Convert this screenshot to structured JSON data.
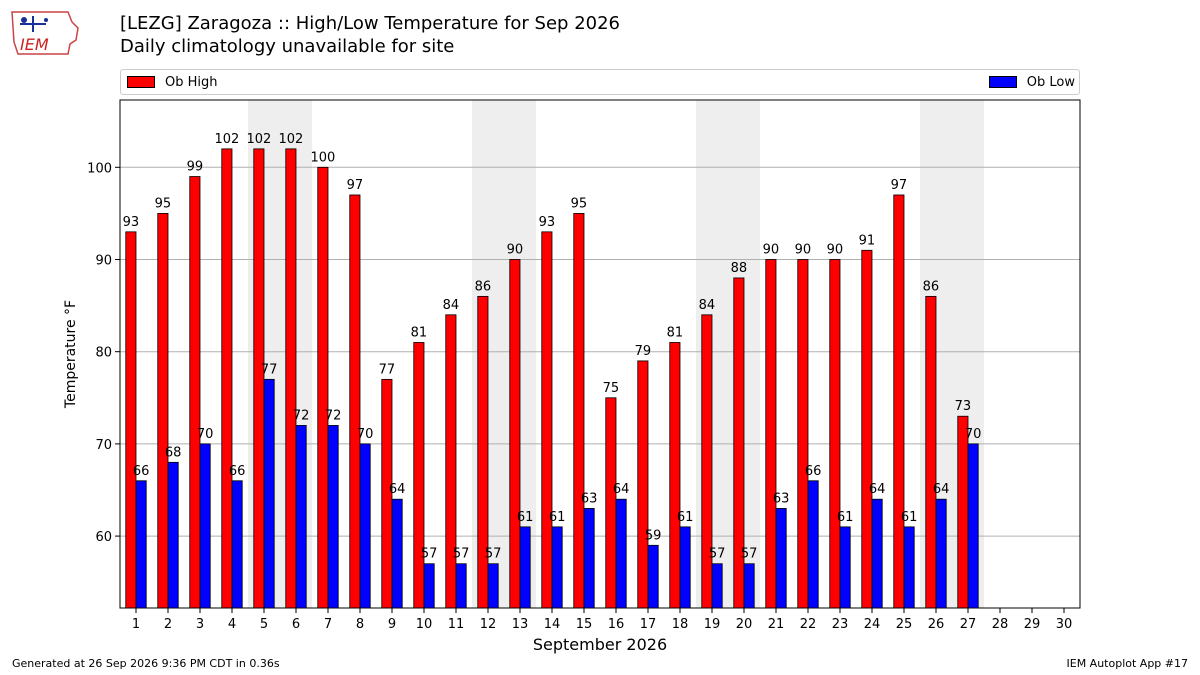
{
  "header": {
    "title": "[LEZG] Zaragoza :: High/Low Temperature for Sep 2026",
    "subtitle": "Daily climatology unavailable for site",
    "logo_text": "IEM"
  },
  "legend": {
    "high_label": "Ob High",
    "low_label": "Ob Low"
  },
  "footer": {
    "generated": "Generated at 26 Sep 2026 9:36 PM CDT in 0.36s",
    "app": "IEM Autoplot App #17"
  },
  "colors": {
    "high": "#ff0000",
    "low": "#0000ff",
    "weekend_band": "#eeeeee",
    "grid": "#b0b0b0"
  },
  "chart_data": {
    "type": "bar",
    "title": "[LEZG] Zaragoza :: High/Low Temperature for Sep 2026",
    "subtitle": "Daily climatology unavailable for site",
    "xlabel": "September 2026",
    "ylabel": "Temperature °F",
    "categories": [
      "1",
      "2",
      "3",
      "4",
      "5",
      "6",
      "7",
      "8",
      "9",
      "10",
      "11",
      "12",
      "13",
      "14",
      "15",
      "16",
      "17",
      "18",
      "19",
      "20",
      "21",
      "22",
      "23",
      "24",
      "25",
      "26",
      "27",
      "28",
      "29",
      "30"
    ],
    "series": [
      {
        "name": "Ob High",
        "color": "#ff0000",
        "values": [
          93,
          95,
          99,
          102,
          102,
          102,
          100,
          97,
          77,
          81,
          84,
          86,
          90,
          93,
          95,
          75,
          79,
          81,
          84,
          88,
          90,
          90,
          90,
          91,
          97,
          86,
          73,
          null,
          null,
          null
        ]
      },
      {
        "name": "Ob Low",
        "color": "#0000ff",
        "values": [
          66,
          68,
          70,
          66,
          77,
          72,
          72,
          70,
          64,
          57,
          57,
          57,
          61,
          61,
          63,
          64,
          59,
          61,
          57,
          57,
          63,
          66,
          61,
          64,
          61,
          64,
          70,
          null,
          null,
          null
        ]
      }
    ],
    "weekend_days": [
      5,
      6,
      12,
      13,
      19,
      20,
      26,
      27
    ],
    "ylim": [
      52.2,
      107.3
    ],
    "yticks": [
      60,
      70,
      80,
      90,
      100
    ],
    "grid": true,
    "legend": "top"
  }
}
